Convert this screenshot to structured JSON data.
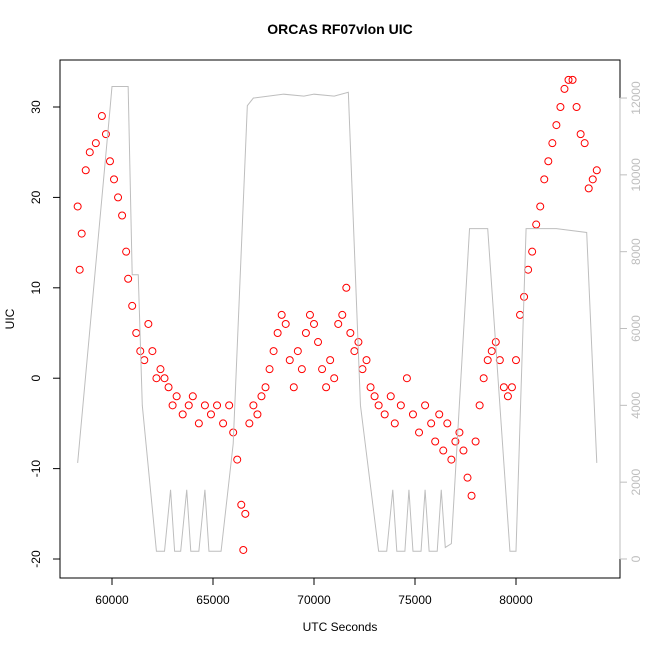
{
  "chart_data": {
    "type": "scatter",
    "title": "ORCAS RF07vlon UIC",
    "xlabel": "UTC Seconds",
    "ylabel": "UIC",
    "xlim": [
      57426,
      85149
    ],
    "ylim": [
      -22.1,
      35.2
    ],
    "y2lim": [
      -495,
      12990
    ],
    "xticks": [
      60000,
      65000,
      70000,
      75000,
      80000
    ],
    "yticks": [
      -20,
      -10,
      0,
      10,
      20,
      30
    ],
    "y2ticks": [
      0,
      2000,
      4000,
      6000,
      8000,
      10000,
      12000
    ],
    "series": [
      {
        "type": "scatter",
        "color": "#ff0000",
        "x": [
          58300,
          58400,
          58500,
          58700,
          58900,
          59200,
          59500,
          59700,
          59900,
          60100,
          60300,
          60500,
          60700,
          60800,
          61000,
          61200,
          61400,
          61600,
          61800,
          62000,
          62200,
          62400,
          62600,
          62800,
          63000,
          63200,
          63500,
          63800,
          64000,
          64300,
          64600,
          64900,
          65200,
          65500,
          65800,
          66000,
          66200,
          66400,
          66500,
          66600,
          66800,
          67000,
          67200,
          67400,
          67600,
          67800,
          68000,
          68200,
          68400,
          68600,
          68800,
          69000,
          69200,
          69400,
          69600,
          69800,
          70000,
          70200,
          70400,
          70600,
          70800,
          71000,
          71200,
          71400,
          71600,
          71800,
          72000,
          72200,
          72400,
          72600,
          72800,
          73000,
          73200,
          73500,
          73800,
          74000,
          74300,
          74600,
          74900,
          75200,
          75500,
          75800,
          76000,
          76200,
          76400,
          76600,
          76800,
          77000,
          77200,
          77400,
          77600,
          77800,
          78000,
          78200,
          78400,
          78600,
          78800,
          79000,
          79200,
          79400,
          79600,
          79800,
          80000,
          80200,
          80400,
          80600,
          80800,
          81000,
          81200,
          81400,
          81600,
          81800,
          82000,
          82200,
          82400,
          82600,
          82800,
          83000,
          83200,
          83400,
          83600,
          83800,
          84000
        ],
        "values": [
          19,
          12,
          16,
          23,
          25,
          26,
          29,
          27,
          24,
          22,
          20,
          18,
          14,
          11,
          8,
          5,
          3,
          2,
          6,
          3,
          0,
          1,
          0,
          -1,
          -3,
          -2,
          -4,
          -3,
          -2,
          -5,
          -3,
          -4,
          -3,
          -5,
          -3,
          -6,
          -9,
          -14,
          -19,
          -15,
          -5,
          -3,
          -4,
          -2,
          -1,
          1,
          3,
          5,
          7,
          6,
          2,
          -1,
          3,
          1,
          5,
          7,
          6,
          4,
          1,
          -1,
          2,
          0,
          6,
          7,
          10,
          5,
          3,
          4,
          1,
          2,
          -1,
          -2,
          -3,
          -4,
          -2,
          -5,
          -3,
          0,
          -4,
          -6,
          -3,
          -5,
          -7,
          -4,
          -8,
          -5,
          -9,
          -7,
          -6,
          -8,
          -11,
          -13,
          -7,
          -3,
          0,
          2,
          3,
          4,
          2,
          -1,
          -2,
          -1,
          2,
          7,
          9,
          12,
          14,
          17,
          19,
          22,
          24,
          26,
          28,
          30,
          32,
          33,
          33,
          30,
          27,
          26,
          21,
          22,
          23
        ]
      },
      {
        "type": "line",
        "color": "#bebebe",
        "axis": "y2",
        "x": [
          58300,
          59900,
          60000,
          60800,
          61000,
          61300,
          61500,
          62200,
          62600,
          62900,
          63100,
          63400,
          63700,
          63900,
          64300,
          64600,
          64800,
          65400,
          66000,
          66700,
          67000,
          68500,
          69500,
          70000,
          71000,
          71700,
          72300,
          73200,
          73600,
          73900,
          74100,
          74500,
          74700,
          74900,
          75300,
          75500,
          75700,
          76100,
          76300,
          76500,
          76800,
          77700,
          78600,
          79700,
          80000,
          80500,
          82000,
          83500,
          84000
        ],
        "values": [
          2500,
          11700,
          12300,
          12300,
          7400,
          7400,
          4000,
          200,
          200,
          1800,
          200,
          200,
          1800,
          200,
          200,
          1800,
          200,
          200,
          3000,
          11800,
          12000,
          12100,
          12050,
          12100,
          12050,
          12150,
          4000,
          200,
          200,
          1800,
          200,
          200,
          1800,
          200,
          200,
          1800,
          200,
          200,
          1800,
          300,
          400,
          8600,
          8600,
          200,
          200,
          8600,
          8600,
          8500,
          2500
        ]
      }
    ]
  }
}
